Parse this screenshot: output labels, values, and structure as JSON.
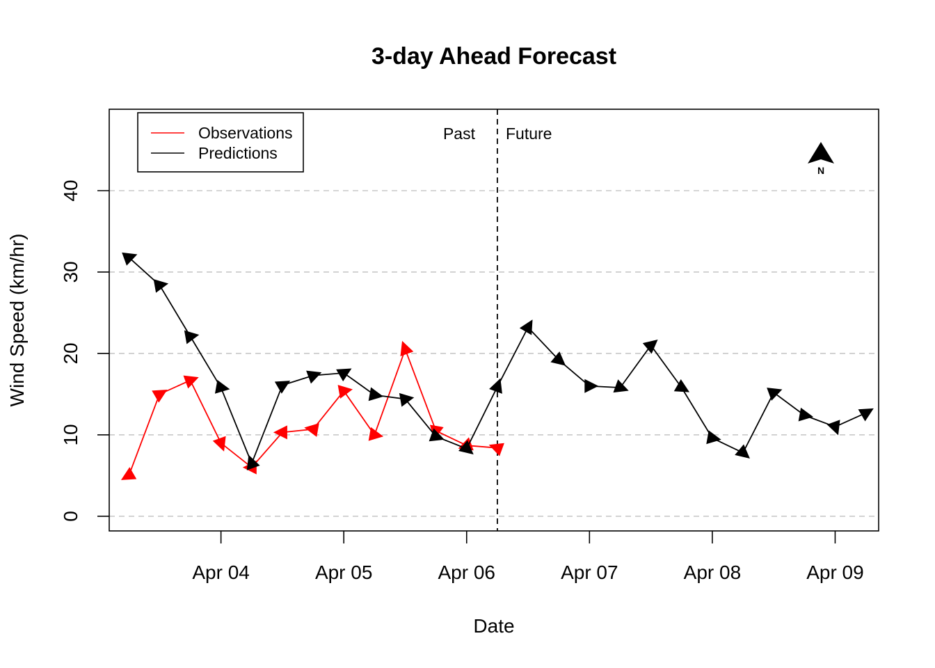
{
  "chart_data": {
    "type": "line",
    "title": "3-day Ahead Forecast",
    "xlabel": "Date",
    "ylabel": "Wind Speed (km/hr)",
    "ylim": [
      -1.8,
      50
    ],
    "xlim": [
      "2024-04-03 02:10",
      "2024-04-09 08:30"
    ],
    "y_ticks": [
      0,
      10,
      20,
      30,
      40
    ],
    "x_ticks": [
      {
        "date": "2024-04-04 00:00",
        "label": "Apr 04"
      },
      {
        "date": "2024-04-05 00:00",
        "label": "Apr 05"
      },
      {
        "date": "2024-04-06 00:00",
        "label": "Apr 06"
      },
      {
        "date": "2024-04-07 00:00",
        "label": "Apr 07"
      },
      {
        "date": "2024-04-08 00:00",
        "label": "Apr 08"
      },
      {
        "date": "2024-04-09 00:00",
        "label": "Apr 09"
      }
    ],
    "grid": "horizontal dashed",
    "legend_position": "top-left",
    "divider": {
      "date": "2024-04-06 06:00",
      "left_label": "Past",
      "right_label": "Future"
    },
    "north_label": "N",
    "series": [
      {
        "name": "Observations",
        "color": "#ff0000",
        "marker": "wind-direction-arrow",
        "points": [
          {
            "x": "2024-04-03 06:00",
            "y": 5.0,
            "dir": 240
          },
          {
            "x": "2024-04-03 12:00",
            "y": 15.0,
            "dir": 60
          },
          {
            "x": "2024-04-03 18:00",
            "y": 16.7,
            "dir": 70
          },
          {
            "x": "2024-04-04 00:00",
            "y": 9.0,
            "dir": 160
          },
          {
            "x": "2024-04-04 06:00",
            "y": 6.0,
            "dir": 270
          },
          {
            "x": "2024-04-04 12:00",
            "y": 10.3,
            "dir": 270
          },
          {
            "x": "2024-04-04 18:00",
            "y": 10.7,
            "dir": 280
          },
          {
            "x": "2024-04-05 00:00",
            "y": 15.4,
            "dir": 80
          },
          {
            "x": "2024-04-05 06:00",
            "y": 10.0,
            "dir": 100
          },
          {
            "x": "2024-04-05 12:00",
            "y": 20.5,
            "dir": 340
          },
          {
            "x": "2024-04-05 18:00",
            "y": 10.5,
            "dir": 190
          },
          {
            "x": "2024-04-06 00:00",
            "y": 8.7,
            "dir": 250
          },
          {
            "x": "2024-04-06 06:00",
            "y": 8.4,
            "dir": 290
          }
        ]
      },
      {
        "name": "Predictions",
        "color": "#000000",
        "marker": "wind-direction-arrow",
        "points": [
          {
            "x": "2024-04-03 06:00",
            "y": 31.8,
            "dir": 70
          },
          {
            "x": "2024-04-03 12:00",
            "y": 28.4,
            "dir": 80
          },
          {
            "x": "2024-04-03 18:00",
            "y": 22.1,
            "dir": 80
          },
          {
            "x": "2024-04-04 00:00",
            "y": 15.8,
            "dir": 100
          },
          {
            "x": "2024-04-04 06:00",
            "y": 6.5,
            "dir": 340
          },
          {
            "x": "2024-04-04 12:00",
            "y": 16.1,
            "dir": 60
          },
          {
            "x": "2024-04-04 18:00",
            "y": 17.3,
            "dir": 70
          },
          {
            "x": "2024-04-05 00:00",
            "y": 17.6,
            "dir": 60
          },
          {
            "x": "2024-04-05 06:00",
            "y": 14.9,
            "dir": 100
          },
          {
            "x": "2024-04-05 12:00",
            "y": 14.4,
            "dir": 80
          },
          {
            "x": "2024-04-05 18:00",
            "y": 9.8,
            "dir": 110
          },
          {
            "x": "2024-04-06 00:00",
            "y": 8.3,
            "dir": 130
          },
          {
            "x": "2024-04-06 06:00",
            "y": 15.9,
            "dir": 20
          },
          {
            "x": "2024-04-06 12:00",
            "y": 23.2,
            "dir": 30
          },
          {
            "x": "2024-04-06 18:00",
            "y": 19.2,
            "dir": 130
          },
          {
            "x": "2024-04-07 00:00",
            "y": 16.0,
            "dir": 90
          },
          {
            "x": "2024-04-07 06:00",
            "y": 15.8,
            "dir": 110
          },
          {
            "x": "2024-04-07 12:00",
            "y": 21.0,
            "dir": 50
          },
          {
            "x": "2024-04-07 18:00",
            "y": 15.8,
            "dir": 120
          },
          {
            "x": "2024-04-08 00:00",
            "y": 9.6,
            "dir": 100
          },
          {
            "x": "2024-04-08 06:00",
            "y": 7.8,
            "dir": 130
          },
          {
            "x": "2024-04-08 12:00",
            "y": 15.2,
            "dir": 70
          },
          {
            "x": "2024-04-08 18:00",
            "y": 12.4,
            "dir": 100
          },
          {
            "x": "2024-04-09 00:00",
            "y": 11.0,
            "dir": 160
          },
          {
            "x": "2024-04-09 06:00",
            "y": 12.7,
            "dir": 60
          }
        ]
      }
    ]
  }
}
